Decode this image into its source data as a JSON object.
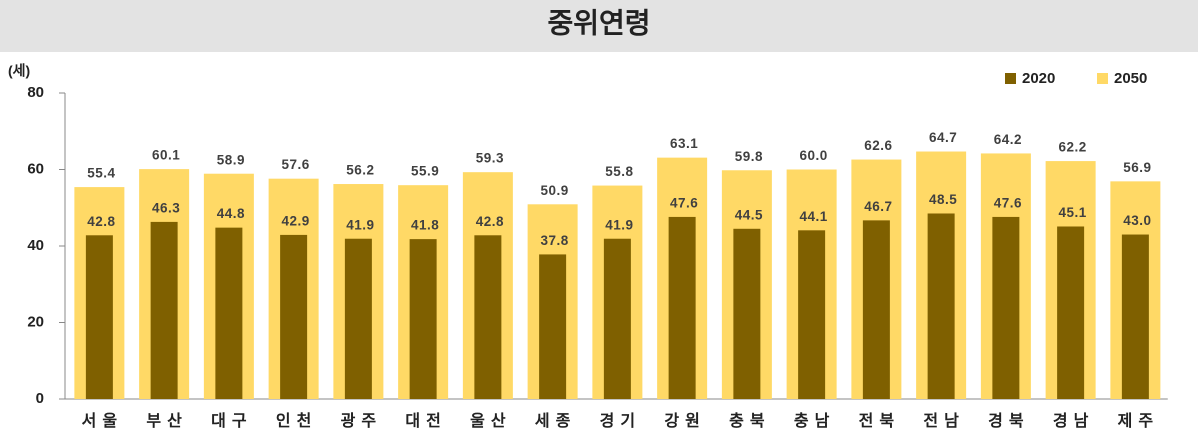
{
  "chart_data": {
    "type": "bar",
    "title": "중위연령",
    "y_label": "(세)",
    "categories": [
      "서울",
      "부산",
      "대구",
      "인천",
      "광주",
      "대전",
      "울산",
      "세종",
      "경기",
      "강원",
      "충북",
      "충남",
      "전북",
      "전남",
      "경북",
      "경남",
      "제주"
    ],
    "series": [
      {
        "name": "2020",
        "color": "#7f6000",
        "values": [
          42.8,
          46.3,
          44.8,
          42.9,
          41.9,
          41.8,
          42.8,
          37.8,
          41.9,
          47.6,
          44.5,
          44.1,
          46.7,
          48.5,
          47.6,
          45.1,
          43.0
        ],
        "value_labels": [
          "42.8",
          "46.3",
          "44.8",
          "42.9",
          "41.9",
          "41.8",
          "42.8",
          "37.8",
          "41.9",
          "47.6",
          "44.5",
          "44.1",
          "46.7",
          "48.5",
          "47.6",
          "45.1",
          "43.0"
        ]
      },
      {
        "name": "2050",
        "color": "#ffd966",
        "values": [
          55.4,
          60.1,
          58.9,
          57.6,
          56.2,
          55.9,
          59.3,
          50.9,
          55.8,
          63.1,
          59.8,
          60.0,
          62.6,
          64.7,
          64.2,
          62.2,
          56.9
        ],
        "value_labels": [
          "55.4",
          "60.1",
          "58.9",
          "57.6",
          "56.2",
          "55.9",
          "59.3",
          "50.9",
          "55.8",
          "63.1",
          "59.8",
          "60.0",
          "62.6",
          "64.7",
          "64.2",
          "62.2",
          "56.9"
        ]
      }
    ],
    "ylim": [
      0,
      80
    ],
    "yticks": [
      0,
      20,
      40,
      60,
      80
    ],
    "grid": false,
    "legend": "top-right"
  }
}
